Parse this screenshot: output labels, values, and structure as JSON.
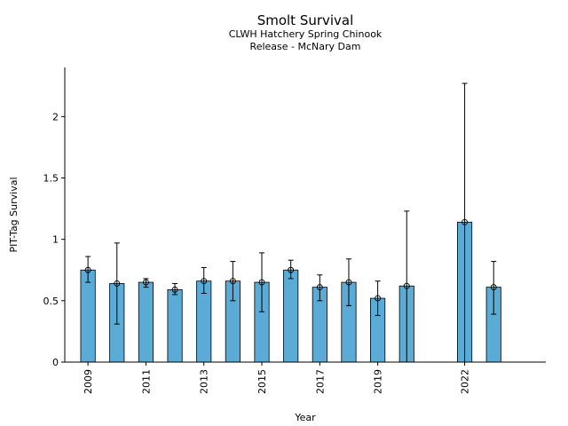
{
  "chart_data": {
    "type": "bar",
    "title": "Smolt Survival",
    "subtitle_lines": [
      "CLWH Hatchery Spring Chinook",
      "Release - McNary Dam"
    ],
    "xlabel": "Year",
    "ylabel": "PIT-Tag Survival",
    "ylim": [
      0,
      2.4
    ],
    "xlim": [
      2008.2,
      2024.8
    ],
    "y_ticks": [
      0,
      0.5,
      1,
      1.5,
      2
    ],
    "y_tick_labels": [
      "0",
      "0.5",
      "1",
      "1.5",
      "2"
    ],
    "x_ticks": [
      2009,
      2011,
      2013,
      2015,
      2017,
      2019,
      2022
    ],
    "x_tick_labels": [
      "2009",
      "2011",
      "2013",
      "2015",
      "2017",
      "2019",
      "2022"
    ],
    "bar_color": "#5aabd6",
    "edge_color": "#000000",
    "grid": false,
    "legend": "none",
    "bars": [
      {
        "x": 2009,
        "value": 0.75,
        "lower": 0.65,
        "upper": 0.86
      },
      {
        "x": 2010,
        "value": 0.64,
        "lower": 0.31,
        "upper": 0.97
      },
      {
        "x": 2011,
        "value": 0.65,
        "lower": 0.61,
        "upper": 0.68
      },
      {
        "x": 2012,
        "value": 0.59,
        "lower": 0.55,
        "upper": 0.64
      },
      {
        "x": 2013,
        "value": 0.66,
        "lower": 0.56,
        "upper": 0.77
      },
      {
        "x": 2014,
        "value": 0.66,
        "lower": 0.5,
        "upper": 0.82
      },
      {
        "x": 2015,
        "value": 0.65,
        "lower": 0.41,
        "upper": 0.89
      },
      {
        "x": 2016,
        "value": 0.75,
        "lower": 0.68,
        "upper": 0.83
      },
      {
        "x": 2017,
        "value": 0.61,
        "lower": 0.5,
        "upper": 0.71
      },
      {
        "x": 2018,
        "value": 0.65,
        "lower": 0.46,
        "upper": 0.84
      },
      {
        "x": 2019,
        "value": 0.52,
        "lower": 0.38,
        "upper": 0.66
      },
      {
        "x": 2020,
        "value": 0.62,
        "lower": 0.0,
        "upper": 1.23
      },
      {
        "x": 2022,
        "value": 1.14,
        "lower": 0.0,
        "upper": 2.27
      },
      {
        "x": 2023,
        "value": 0.61,
        "lower": 0.39,
        "upper": 0.82
      }
    ]
  }
}
